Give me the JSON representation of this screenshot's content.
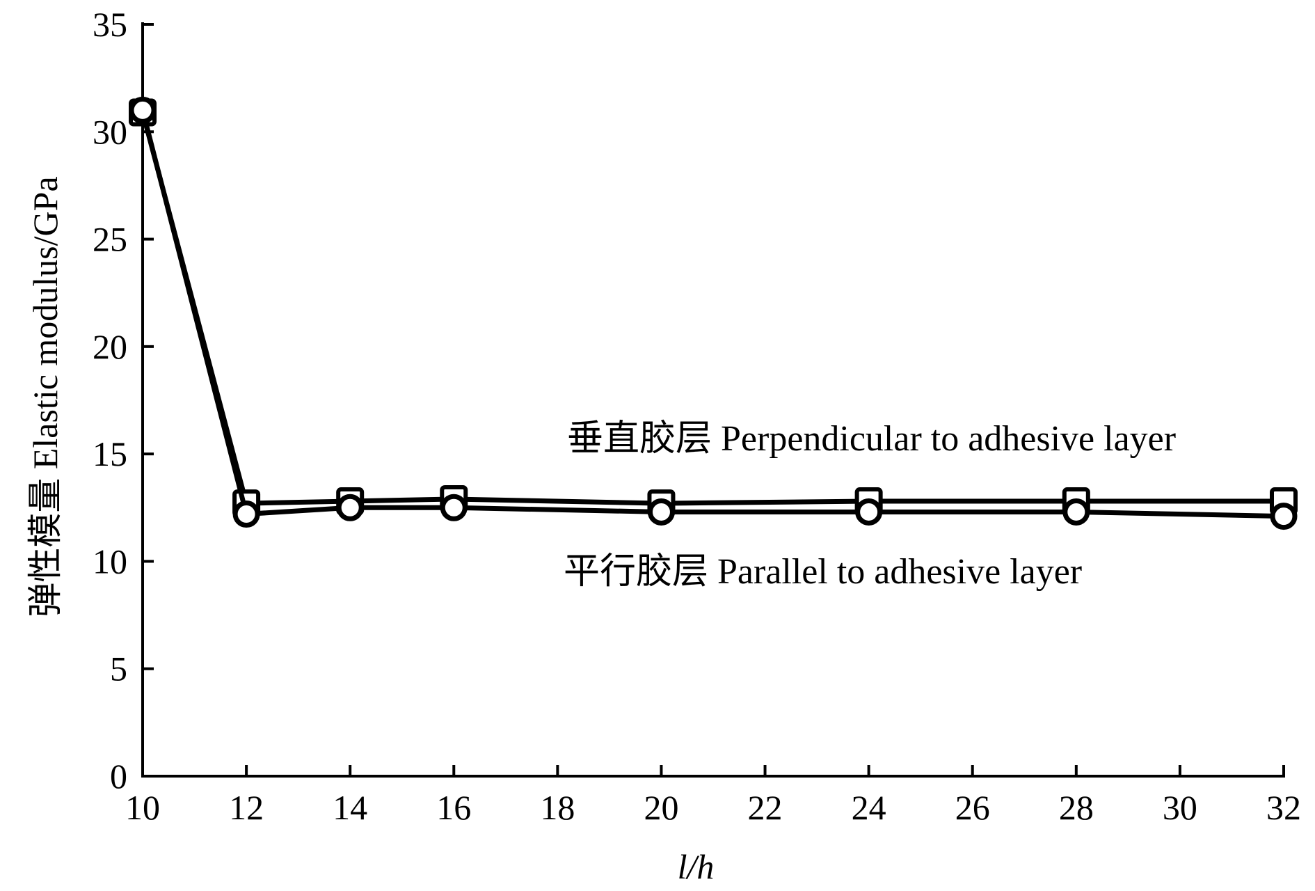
{
  "chart_data": {
    "type": "line",
    "title": "",
    "xlabel": "l/h",
    "ylabel": "弹性模量  Elastic modulus/GPa",
    "xlim": [
      10,
      32
    ],
    "ylim": [
      0,
      35
    ],
    "x_ticks": [
      10,
      12,
      14,
      16,
      18,
      20,
      22,
      24,
      26,
      28,
      30,
      32
    ],
    "y_ticks": [
      0,
      5,
      10,
      15,
      20,
      25,
      30,
      35
    ],
    "grid": false,
    "legend": "none",
    "x": [
      10,
      12,
      14,
      16,
      20,
      24,
      28,
      32
    ],
    "series": [
      {
        "name": "垂直胶层  Perpendicular to adhesive layer",
        "marker": "square",
        "values": [
          30.9,
          12.7,
          12.8,
          12.9,
          12.7,
          12.8,
          12.8,
          12.8
        ]
      },
      {
        "name": "平行胶层  Parallel to adhesive layer",
        "marker": "circle",
        "values": [
          31.0,
          12.2,
          12.5,
          12.5,
          12.3,
          12.3,
          12.3,
          12.1
        ]
      }
    ]
  }
}
